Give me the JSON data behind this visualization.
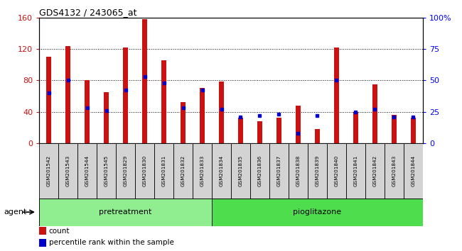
{
  "title": "GDS4132 / 243065_at",
  "samples": [
    "GSM201542",
    "GSM201543",
    "GSM201544",
    "GSM201545",
    "GSM201829",
    "GSM201830",
    "GSM201831",
    "GSM201832",
    "GSM201833",
    "GSM201834",
    "GSM201835",
    "GSM201836",
    "GSM201837",
    "GSM201838",
    "GSM201839",
    "GSM201840",
    "GSM201841",
    "GSM201842",
    "GSM201843",
    "GSM201844"
  ],
  "counts": [
    110,
    124,
    80,
    65,
    122,
    158,
    106,
    52,
    70,
    78,
    32,
    28,
    32,
    48,
    18,
    122,
    40,
    75,
    36,
    32
  ],
  "percentiles": [
    40,
    50,
    28,
    26,
    42,
    53,
    48,
    28,
    42,
    27,
    21,
    22,
    23,
    8,
    22,
    50,
    25,
    27,
    21,
    21
  ],
  "groups": [
    {
      "name": "pretreatment",
      "start": 0,
      "end": 9,
      "color": "#90ee90"
    },
    {
      "name": "pioglitazone",
      "start": 9,
      "end": 20,
      "color": "#4ddd4d"
    }
  ],
  "bar_color": "#cc1111",
  "percentile_color": "#0000cc",
  "bar_width": 0.25,
  "ylim_left": [
    0,
    160
  ],
  "ylim_right": [
    0,
    100
  ],
  "yticks_left": [
    0,
    40,
    80,
    120,
    160
  ],
  "yticks_right": [
    0,
    25,
    50,
    75,
    100
  ],
  "ytick_labels_right": [
    "0",
    "25",
    "50",
    "75",
    "100%"
  ],
  "cell_color": "#d3d3d3",
  "count_label": "count",
  "percentile_label": "percentile rank within the sample",
  "agent_label": "agent"
}
